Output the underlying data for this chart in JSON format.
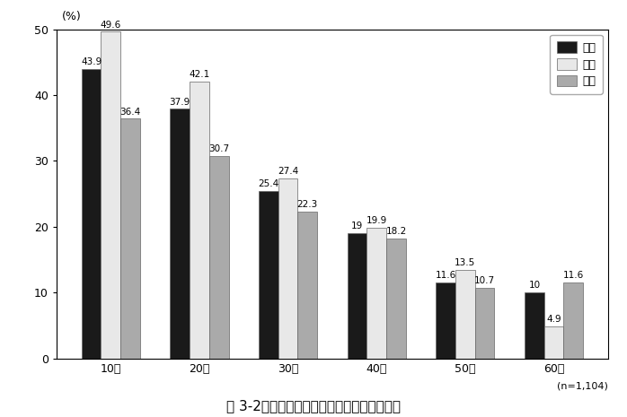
{
  "categories": [
    "10代",
    "20代",
    "30代",
    "40代",
    "50代",
    "60代"
  ],
  "series": {
    "全体": [
      43.9,
      37.9,
      25.4,
      19.0,
      11.6,
      10.0
    ],
    "女性": [
      49.6,
      42.1,
      27.4,
      19.9,
      13.5,
      4.9
    ],
    "男性": [
      36.4,
      30.7,
      22.3,
      18.2,
      10.7,
      11.6
    ]
  },
  "colors": {
    "全体": "#1a1a1a",
    "女性": "#e8e8e8",
    "男性": "#aaaaaa"
  },
  "ylim": [
    0,
    50
  ],
  "yticks": [
    0,
    10,
    20,
    30,
    40,
    50
  ],
  "ylabel": "(%)",
  "n_label": "(n=1,104)",
  "title": "図 3-2　ブログ開設者の内訳（年代・性別）",
  "legend_order": [
    "全体",
    "女性",
    "男性"
  ],
  "bar_width": 0.22,
  "edgecolor": "#666666",
  "title_fontsize": 11,
  "axis_fontsize": 9,
  "label_fontsize": 7.5,
  "tick_fontsize": 9,
  "legend_fontsize": 9
}
